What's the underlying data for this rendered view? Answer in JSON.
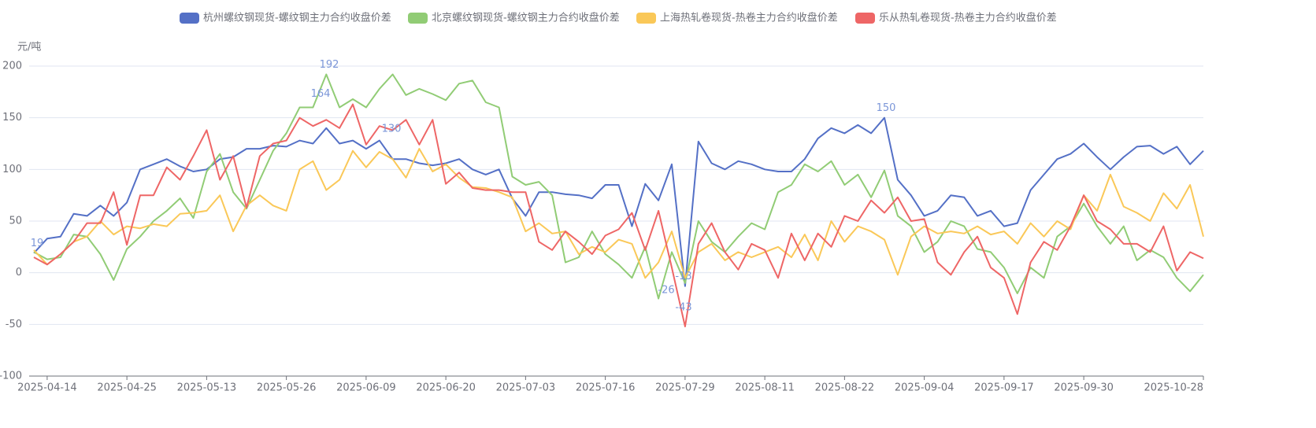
{
  "chart_data": {
    "type": "line",
    "y_axis_label": "元/吨",
    "ylim": [
      -100,
      200
    ],
    "yticks": [
      -100,
      -50,
      0,
      50,
      100,
      150,
      200
    ],
    "grid": true,
    "legend": "top",
    "categories": [
      null,
      "2025-04-14",
      null,
      null,
      null,
      null,
      null,
      "2025-04-25",
      null,
      null,
      null,
      null,
      null,
      "2025-05-13",
      null,
      null,
      null,
      null,
      null,
      "2025-05-26",
      null,
      null,
      null,
      null,
      null,
      "2025-06-09",
      null,
      null,
      null,
      null,
      null,
      "2025-06-20",
      null,
      null,
      null,
      null,
      null,
      "2025-07-03",
      null,
      null,
      null,
      null,
      null,
      "2025-07-16",
      null,
      null,
      null,
      null,
      null,
      "2025-07-29",
      null,
      null,
      null,
      null,
      null,
      "2025-08-11",
      null,
      null,
      null,
      null,
      null,
      "2025-08-22",
      null,
      null,
      null,
      null,
      null,
      "2025-09-04",
      null,
      null,
      null,
      null,
      null,
      "2025-09-17",
      null,
      null,
      null,
      null,
      null,
      "2025-09-30",
      null,
      null,
      null,
      null,
      null,
      null,
      null,
      null,
      "2025-10-28"
    ],
    "series": [
      {
        "name": "杭州螺纹钢现货-螺纹钢主力合约收盘价差",
        "color": "#5470c6",
        "values": [
          19,
          33,
          35,
          57,
          55,
          65,
          55,
          68,
          100,
          105,
          110,
          103,
          98,
          100,
          110,
          112,
          120,
          120,
          123,
          122,
          128,
          125,
          140,
          125,
          128,
          120,
          128,
          110,
          110,
          106,
          104,
          106,
          110,
          100,
          95,
          100,
          72,
          55,
          78,
          78,
          76,
          75,
          72,
          85,
          85,
          45,
          86,
          70,
          105,
          -13,
          127,
          106,
          100,
          108,
          105,
          100,
          98,
          98,
          110,
          130,
          140,
          135,
          143,
          135,
          150,
          90,
          75,
          55,
          60,
          75,
          73,
          55,
          60,
          45,
          48,
          80,
          95,
          110,
          115,
          125,
          112,
          100,
          112,
          122,
          123,
          115,
          122,
          105,
          118
        ]
      },
      {
        "name": "北京螺纹钢现货-螺纹钢主力合约收盘价差",
        "color": "#91cc75",
        "values": [
          20,
          13,
          15,
          37,
          35,
          18,
          -7,
          23,
          35,
          50,
          60,
          72,
          53,
          98,
          115,
          78,
          62,
          90,
          118,
          135,
          160,
          160,
          192,
          160,
          168,
          160,
          178,
          192,
          172,
          178,
          173,
          167,
          183,
          186,
          165,
          160,
          93,
          85,
          88,
          75,
          10,
          15,
          40,
          18,
          8,
          -5,
          25,
          -25,
          20,
          -10,
          50,
          30,
          20,
          35,
          48,
          42,
          78,
          85,
          105,
          98,
          108,
          85,
          95,
          73,
          99,
          55,
          45,
          20,
          30,
          50,
          45,
          23,
          20,
          5,
          -20,
          5,
          -5,
          35,
          45,
          67,
          45,
          28,
          45,
          12,
          22,
          15,
          -5,
          -18,
          -2
        ]
      },
      {
        "name": "上海热轧卷现货-热卷主力合约收盘价差",
        "color": "#fac858",
        "values": [
          22,
          8,
          18,
          30,
          35,
          50,
          37,
          45,
          43,
          47,
          45,
          57,
          58,
          60,
          75,
          40,
          65,
          75,
          65,
          60,
          100,
          108,
          80,
          90,
          118,
          102,
          117,
          110,
          92,
          120,
          98,
          105,
          92,
          83,
          82,
          78,
          73,
          40,
          48,
          38,
          40,
          18,
          25,
          20,
          32,
          28,
          -5,
          10,
          40,
          -5,
          20,
          28,
          12,
          20,
          15,
          20,
          25,
          15,
          37,
          12,
          50,
          30,
          45,
          40,
          32,
          -2,
          35,
          45,
          38,
          40,
          38,
          45,
          37,
          40,
          28,
          48,
          35,
          50,
          42,
          75,
          60,
          95,
          64,
          58,
          50,
          77,
          62,
          85,
          35
        ]
      },
      {
        "name": "乐从热轧卷现货-热卷主力合约收盘价差",
        "color": "#ee6666",
        "values": [
          15,
          8,
          18,
          30,
          48,
          48,
          78,
          27,
          75,
          75,
          102,
          90,
          113,
          138,
          90,
          113,
          63,
          113,
          125,
          128,
          150,
          142,
          148,
          140,
          163,
          124,
          142,
          138,
          148,
          124,
          148,
          86,
          97,
          82,
          80,
          80,
          78,
          78,
          30,
          22,
          40,
          30,
          18,
          36,
          42,
          58,
          22,
          60,
          5,
          -52,
          28,
          48,
          20,
          3,
          28,
          22,
          -5,
          38,
          12,
          38,
          25,
          55,
          50,
          70,
          58,
          73,
          50,
          52,
          10,
          -2,
          20,
          35,
          5,
          -5,
          -40,
          10,
          30,
          22,
          45,
          75,
          50,
          42,
          28,
          28,
          20,
          45,
          2,
          20,
          14
        ]
      }
    ],
    "annotations": [
      19,
      164,
      192,
      130,
      150,
      -26,
      -13,
      -43
    ]
  }
}
